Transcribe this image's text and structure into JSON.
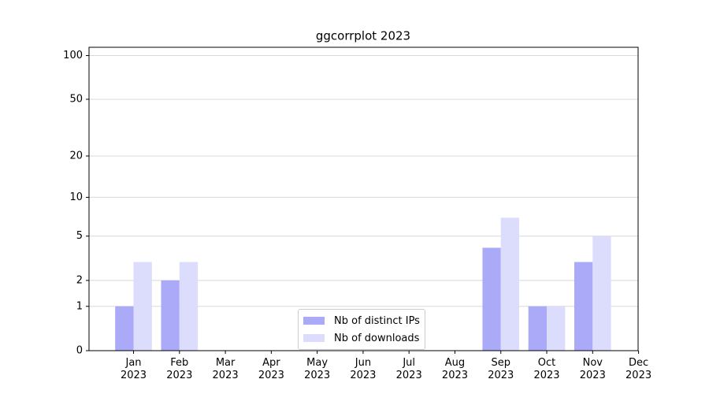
{
  "chart_data": {
    "type": "bar",
    "title": "ggcorrplot 2023",
    "categories": [
      "Jan\n2023",
      "Feb\n2023",
      "Mar\n2023",
      "Apr\n2023",
      "May\n2023",
      "Jun\n2023",
      "Jul\n2023",
      "Aug\n2023",
      "Sep\n2023",
      "Oct\n2023",
      "Nov\n2023",
      "Dec\n2023"
    ],
    "series": [
      {
        "name": "Nb of distinct IPs",
        "color": "#aaaaf8",
        "values": [
          1,
          2,
          0,
          0,
          0,
          0,
          0,
          0,
          4,
          1,
          3,
          0
        ]
      },
      {
        "name": "Nb of downloads",
        "color": "#dcdcfc",
        "values": [
          3,
          3,
          0,
          0,
          0,
          0,
          0,
          0,
          7,
          1,
          5,
          0
        ]
      }
    ],
    "yscale": "log1p",
    "ylim": [
      0,
      114
    ],
    "yticks": [
      0,
      1,
      2,
      5,
      10,
      20,
      50,
      100
    ],
    "grid": true,
    "legend": "lower center"
  }
}
